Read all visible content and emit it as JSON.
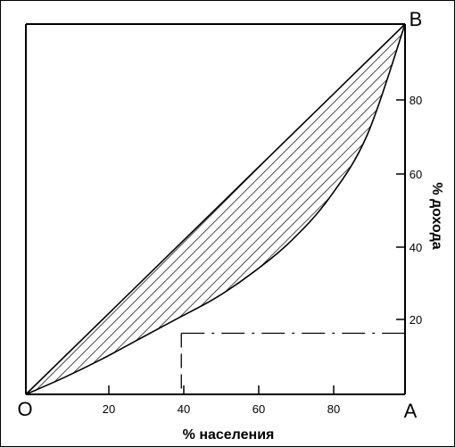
{
  "chart_data": {
    "type": "line",
    "xlabel": "% населения",
    "ylabel": "% дохода",
    "xlim": [
      0,
      100
    ],
    "ylim": [
      0,
      100
    ],
    "x_ticks": [
      "20",
      "40",
      "60",
      "80"
    ],
    "y_ticks": [
      "20",
      "40",
      "60",
      "80"
    ],
    "corner_labels": {
      "origin": "O",
      "bottom_right": "A",
      "top_right": "B"
    },
    "series": [
      {
        "x": [
          0,
          100
        ],
        "y": [
          0,
          100
        ]
      },
      {
        "x": [
          0,
          10,
          20,
          30,
          40,
          50,
          60,
          70,
          80,
          90,
          100
        ],
        "y": [
          0,
          4.5,
          9.5,
          15,
          20.5,
          26,
          33,
          41.5,
          53,
          70,
          100
        ]
      }
    ],
    "highlight_point": {
      "x": 41,
      "y": 16.5
    },
    "shaded_region": "between equality line and Lorenz curve (hatched)",
    "grid": false,
    "colors": {
      "line": "#000000",
      "hatch": "#000000",
      "background": "#ffffff"
    }
  }
}
